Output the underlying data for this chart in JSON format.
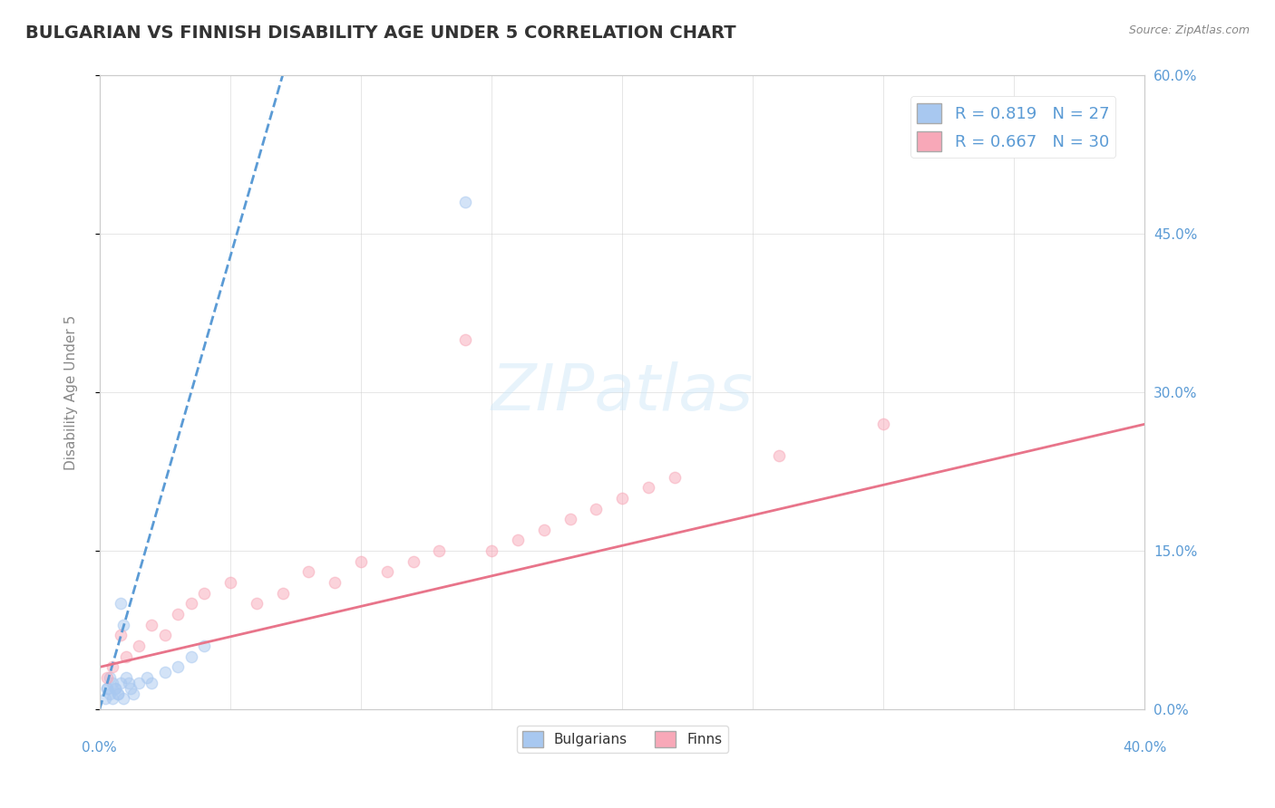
{
  "title": "BULGARIAN VS FINNISH DISABILITY AGE UNDER 5 CORRELATION CHART",
  "source": "Source: ZipAtlas.com",
  "ylabel": "Disability Age Under 5",
  "right_yticks": [
    0.0,
    15.0,
    30.0,
    45.0,
    60.0
  ],
  "xlim": [
    0.0,
    0.4
  ],
  "ylim": [
    0.0,
    0.6
  ],
  "legend_r1": "R = 0.819   N = 27",
  "legend_r2": "R = 0.667   N = 30",
  "legend_label1": "Bulgarians",
  "legend_label2": "Finns",
  "bulgarian_color": "#a8c8f0",
  "finnish_color": "#f8a8b8",
  "bg_color": "#ffffff",
  "grid_color": "#cccccc",
  "title_color": "#333333",
  "axis_label_color": "#5b9bd5",
  "watermark_text": "ZIPatlas",
  "bulgarian_scatter_x": [
    0.003,
    0.004,
    0.005,
    0.006,
    0.007,
    0.008,
    0.009,
    0.01,
    0.011,
    0.012,
    0.013,
    0.015,
    0.018,
    0.02,
    0.025,
    0.03,
    0.035,
    0.04,
    0.002,
    0.003,
    0.004,
    0.005,
    0.006,
    0.007,
    0.14,
    0.008,
    0.009
  ],
  "bulgarian_scatter_y": [
    0.02,
    0.03,
    0.01,
    0.02,
    0.015,
    0.025,
    0.01,
    0.03,
    0.025,
    0.02,
    0.015,
    0.025,
    0.03,
    0.025,
    0.035,
    0.04,
    0.05,
    0.06,
    0.01,
    0.02,
    0.015,
    0.025,
    0.02,
    0.015,
    0.48,
    0.1,
    0.08
  ],
  "finnish_scatter_x": [
    0.005,
    0.01,
    0.015,
    0.02,
    0.025,
    0.03,
    0.035,
    0.04,
    0.05,
    0.06,
    0.07,
    0.08,
    0.09,
    0.1,
    0.11,
    0.12,
    0.13,
    0.14,
    0.15,
    0.16,
    0.17,
    0.18,
    0.19,
    0.2,
    0.21,
    0.22,
    0.003,
    0.008,
    0.26,
    0.3
  ],
  "finnish_scatter_y": [
    0.04,
    0.05,
    0.06,
    0.08,
    0.07,
    0.09,
    0.1,
    0.11,
    0.12,
    0.1,
    0.11,
    0.13,
    0.12,
    0.14,
    0.13,
    0.14,
    0.15,
    0.35,
    0.15,
    0.16,
    0.17,
    0.18,
    0.19,
    0.2,
    0.21,
    0.22,
    0.03,
    0.07,
    0.24,
    0.27
  ],
  "bulgarian_line_x": [
    0.0,
    0.07
  ],
  "bulgarian_line_y": [
    0.0,
    0.6
  ],
  "finnish_line_x": [
    0.0,
    0.4
  ],
  "finnish_line_y": [
    0.04,
    0.27
  ],
  "marker_size": 80,
  "marker_alpha": 0.5,
  "line_width": 2.0
}
